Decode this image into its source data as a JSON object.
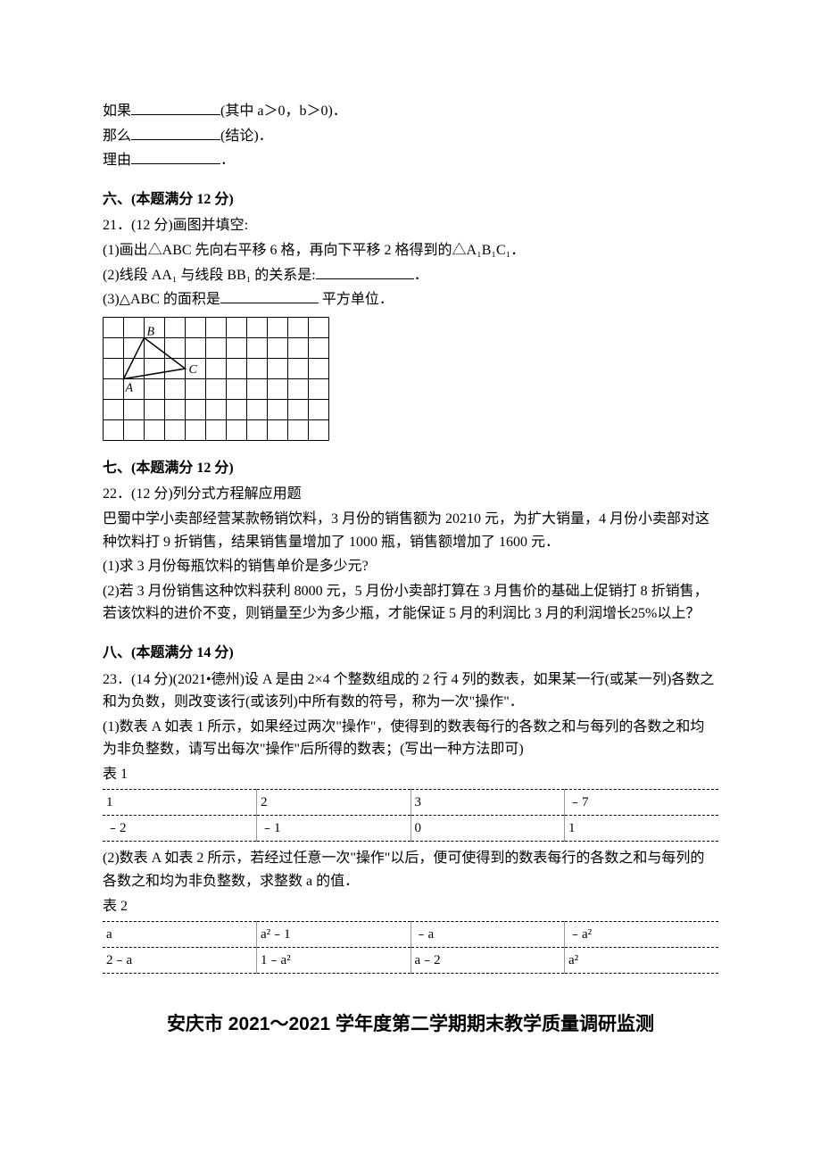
{
  "intro": {
    "line1_prefix": "如果",
    "line1_suffix": "(其中 a＞0，b＞0)．",
    "line2_prefix": "那么",
    "line2_suffix": "(结论)．",
    "line3_prefix": "理由",
    "line3_suffix": "．"
  },
  "section6": {
    "title": "六、(本题满分 12 分)",
    "q_num": "21．(12 分)画图并填空:",
    "p1": "(1)画出△ABC 先向右平移 6 格，再向下平移 2 格得到的△A₁B₁C₁．",
    "p2_prefix": "(2)线段 AA₁ 与线段 BB₁ 的关系是:",
    "p2_suffix": "．",
    "p3_prefix": "(3)△ABC 的面积是",
    "p3_suffix": " 平方单位．",
    "grid": {
      "cols": 11,
      "rows": 6,
      "cell": 23,
      "stroke": "#000000",
      "bg": "#ffffff",
      "labels": {
        "A": "A",
        "B": "B",
        "C": "C"
      },
      "A": [
        1,
        3
      ],
      "B": [
        2,
        1
      ],
      "C": [
        4,
        2.5
      ]
    }
  },
  "section7": {
    "title": "七、(本题满分 12 分)",
    "q_num": "22．(12 分)列分式方程解应用题",
    "p1": "巴蜀中学小卖部经营某款畅销饮料，3 月份的销售额为 20210 元，为扩大销量，4 月份小卖部对这种饮料打 9 折销售，结果销售量增加了 1000 瓶，销售额增加了 1600 元．",
    "p2": "(1)求 3 月份每瓶饮料的销售单价是多少元?",
    "p3": "(2)若 3 月份销售这种饮料获利 8000 元，5 月份小卖部打算在 3 月售价的基础上促销打 8 折销售，若该饮料的进价不变，则销量至少为多少瓶，才能保证 5 月的利润比 3 月的利润增长25%以上？"
  },
  "section8": {
    "title": "八、(本题满分 14 分)",
    "q_num": "23．(14 分)(2021•德州)设 A 是由 2×4 个整数组成的 2 行 4 列的数表，如果某一行(或某一列)各数之和为负数，则改变该行(或该列)中所有数的符号，称为一次\"操作\"．",
    "p1": "(1)数表 A 如表 1 所示，如果经过两次\"操作\"，使得到的数表每行的各数之和与每列的各数之和均为非负整数，请写出每次\"操作\"后所得的数表；(写出一种方法即可)",
    "t1_label": "表 1",
    "table1": {
      "rows": [
        [
          "1",
          "2",
          "3",
          "﹣7"
        ],
        [
          "﹣2",
          "﹣1",
          "0",
          "1"
        ]
      ]
    },
    "p2": "(2)数表 A 如表 2 所示，若经过任意一次\"操作\"以后，便可使得到的数表每行的各数之和与每列的各数之和均为非负整数，求整数 a 的值．",
    "t2_label": "表 2",
    "table2": {
      "rows": [
        [
          "a",
          "a²﹣1",
          "﹣a",
          "﹣a²"
        ],
        [
          "2﹣a",
          "1﹣a²",
          "a﹣2",
          "a²"
        ]
      ]
    }
  },
  "footer": "安庆市 2021～2021 学年度第二学期期末教学质量调研监测"
}
